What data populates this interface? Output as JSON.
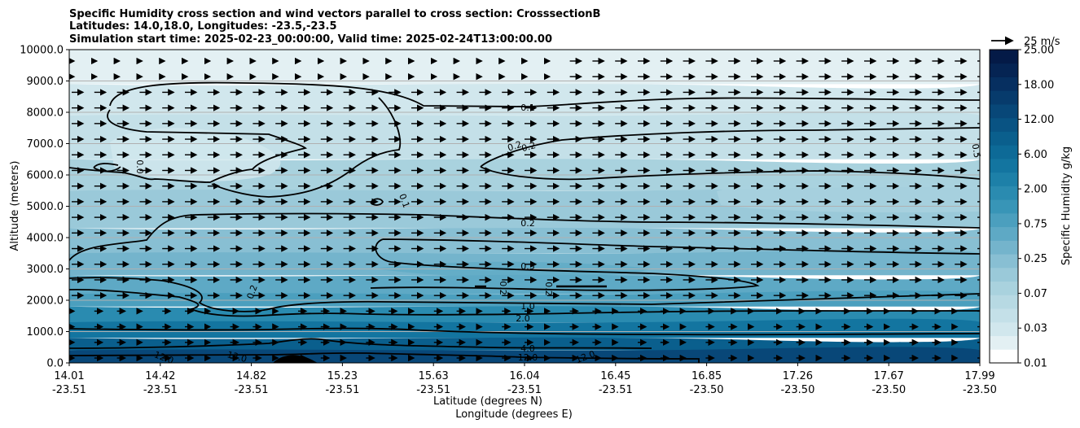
{
  "chart_data": {
    "type": "heatmap",
    "title": [
      "Specific Humidity cross section and wind vectors parallel to cross section: CrosssectionB",
      "Latitudes: 14.0,18.0, Longitudes: -23.5,-23.5",
      "Simulation start time: 2025-02-23_00:00:00, Valid time: 2025-02-24T13:00:00.00"
    ],
    "ylabel": "Altitude (meters)",
    "xlabel": [
      "Latitude (degrees N)",
      "Longitude (degrees E)"
    ],
    "ylim": [
      0,
      10000
    ],
    "yticks": [
      "0.0",
      "1000.0",
      "2000.0",
      "3000.0",
      "4000.0",
      "5000.0",
      "6000.0",
      "7000.0",
      "8000.0",
      "9000.0",
      "10000.0"
    ],
    "xticks": [
      {
        "lat": "14.01",
        "lon": "-23.51"
      },
      {
        "lat": "14.42",
        "lon": "-23.51"
      },
      {
        "lat": "14.82",
        "lon": "-23.51"
      },
      {
        "lat": "15.23",
        "lon": "-23.51"
      },
      {
        "lat": "15.63",
        "lon": "-23.51"
      },
      {
        "lat": "16.04",
        "lon": "-23.51"
      },
      {
        "lat": "16.45",
        "lon": "-23.51"
      },
      {
        "lat": "16.85",
        "lon": "-23.50"
      },
      {
        "lat": "17.26",
        "lon": "-23.50"
      },
      {
        "lat": "17.67",
        "lon": "-23.50"
      },
      {
        "lat": "17.99",
        "lon": "-23.50"
      }
    ],
    "grid": "horizontal",
    "colorbar": {
      "label": "Specific Humidity g/kg",
      "levels": [
        0.01,
        0.02,
        0.03,
        0.05,
        0.07,
        0.1,
        0.25,
        0.35,
        0.5,
        0.75,
        1.0,
        1.5,
        2.0,
        3.0,
        4.0,
        6.0,
        8.0,
        10.0,
        12.0,
        15.0,
        18.0,
        21.0,
        25.0
      ],
      "tick_labels": [
        "0.01",
        "0.03",
        "0.07",
        "0.25",
        "0.75",
        "2.00",
        "6.00",
        "12.00",
        "18.00",
        "25.00"
      ],
      "colors": [
        "#ffffff",
        "#e3f0f3",
        "#d1e7ed",
        "#c4e0e8",
        "#b7d9e3",
        "#a9d2de",
        "#9ac9d9",
        "#88bfd3",
        "#74b4cc",
        "#5ea9c5",
        "#4b9fbe",
        "#3895b7",
        "#2a8bb0",
        "#1d80a8",
        "#1375a0",
        "#0d6a97",
        "#0a5f8d",
        "#095383",
        "#084778",
        "#073b6c",
        "#062f60",
        "#052453",
        "#041a47"
      ]
    },
    "quiver_key": {
      "label": "25 m/s",
      "speed": 25
    },
    "contour_labels": [
      "0.1",
      "0.2",
      "0.2",
      "0.2",
      "0.5",
      "1.0",
      "2.0",
      "4.0",
      "12.0",
      "12.0",
      "12.0",
      "12.0",
      "0.0",
      "0.1",
      "0.2",
      "0.2",
      "0.2",
      "0.5"
    ],
    "bands_altitude_m": [
      {
        "level": 0.02,
        "bottom": 8900,
        "top": 10000
      },
      {
        "level": 0.03,
        "bottom": 7900,
        "top": 8900
      },
      {
        "level": 0.05,
        "bottom": 6500,
        "top": 7900
      },
      {
        "level": 0.1,
        "bottom": 5500,
        "top": 6500
      },
      {
        "level": 0.25,
        "bottom": 4300,
        "top": 5500
      },
      {
        "level": 0.35,
        "bottom": 3500,
        "top": 4300
      },
      {
        "level": 0.5,
        "bottom": 2800,
        "top": 3500
      },
      {
        "level": 0.75,
        "bottom": 2200,
        "top": 2800
      },
      {
        "level": 1.0,
        "bottom": 1800,
        "top": 2200
      },
      {
        "level": 2.0,
        "bottom": 1300,
        "top": 1800
      },
      {
        "level": 4.0,
        "bottom": 800,
        "top": 1300
      },
      {
        "level": 8.0,
        "bottom": 400,
        "top": 800
      },
      {
        "level": 12.0,
        "bottom": 0,
        "top": 400
      }
    ]
  }
}
